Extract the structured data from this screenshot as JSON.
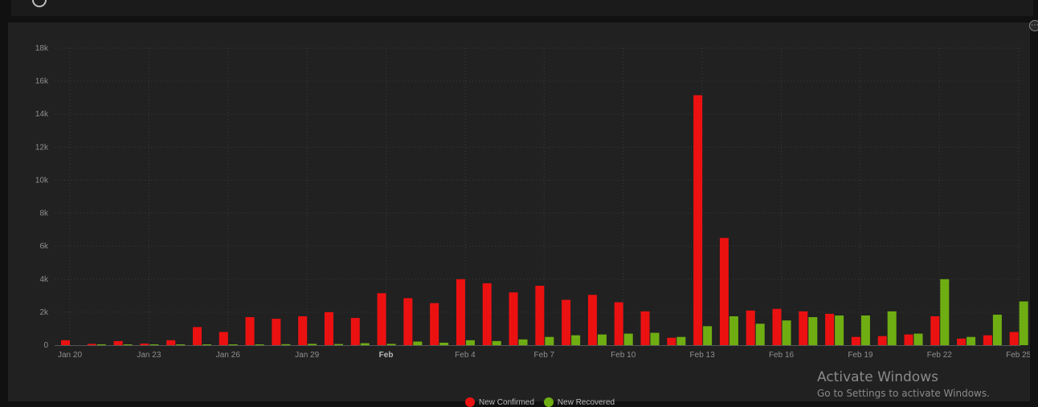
{
  "colors": {
    "confirmed": "#ec1111",
    "recovered": "#6fae12",
    "background": "#212121"
  },
  "chart_data": {
    "type": "bar",
    "categories": [
      "Jan 20",
      "Jan 21",
      "Jan 22",
      "Jan 23",
      "Jan 24",
      "Jan 25",
      "Jan 26",
      "Jan 27",
      "Jan 28",
      "Jan 29",
      "Jan 30",
      "Jan 31",
      "Feb",
      "Feb 2",
      "Feb 3",
      "Feb 4",
      "Feb 5",
      "Feb 6",
      "Feb 7",
      "Feb 8",
      "Feb 9",
      "Feb 10",
      "Feb 11",
      "Feb 12",
      "Feb 13",
      "Feb 14",
      "Feb 15",
      "Feb 16",
      "Feb 17",
      "Feb 18",
      "Feb 19",
      "Feb 20",
      "Feb 21",
      "Feb 22",
      "Feb 23",
      "Feb 24",
      "Feb 25"
    ],
    "x_tick_labels": [
      "Jan 20",
      "Jan 23",
      "Jan 26",
      "Jan 29",
      "Feb",
      "Feb 4",
      "Feb 7",
      "Feb 10",
      "Feb 13",
      "Feb 16",
      "Feb 19",
      "Feb 22",
      "Feb 25"
    ],
    "x_tick_indices": [
      0,
      3,
      6,
      9,
      12,
      15,
      18,
      21,
      24,
      27,
      30,
      33,
      36
    ],
    "y_tick_labels": [
      "0",
      "2k",
      "4k",
      "6k",
      "8k",
      "10k",
      "12k",
      "14k",
      "16k",
      "18k"
    ],
    "ylim": [
      0,
      18000
    ],
    "grid": true,
    "legend_position": "bottom-center",
    "series": [
      {
        "name": "New Confirmed",
        "values": [
          300,
          80,
          250,
          100,
          300,
          1100,
          800,
          1700,
          1600,
          1750,
          2000,
          1650,
          3150,
          2850,
          2550,
          4000,
          3750,
          3200,
          3600,
          2750,
          3050,
          2600,
          2050,
          450,
          15150,
          6500,
          2100,
          2200,
          2050,
          1900,
          500,
          550,
          650,
          1750,
          400,
          600,
          800
        ]
      },
      {
        "name": "New Recovered",
        "values": [
          0,
          50,
          30,
          30,
          20,
          10,
          20,
          30,
          60,
          80,
          70,
          120,
          80,
          220,
          150,
          300,
          250,
          350,
          500,
          600,
          650,
          700,
          750,
          500,
          1150,
          1750,
          1300,
          1500,
          1700,
          1800,
          1800,
          2050,
          700,
          4000,
          500,
          1850,
          2650
        ]
      }
    ]
  },
  "watermark": {
    "title": "Activate Windows",
    "subtitle": "Go to Settings to activate Windows."
  }
}
